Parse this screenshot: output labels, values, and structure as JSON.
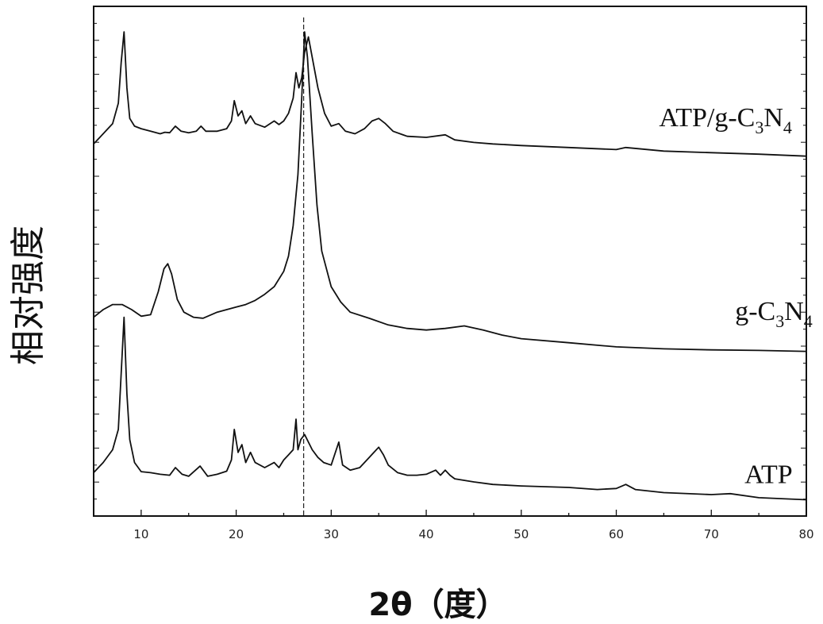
{
  "chart_data": {
    "type": "line",
    "title": "",
    "xlabel": "2θ（度）",
    "ylabel": "相对强度",
    "xlim": [
      5,
      80
    ],
    "ylim": [
      0,
      100
    ],
    "xticks": [
      10,
      20,
      30,
      40,
      50,
      60,
      70,
      80
    ],
    "yticks_labeled": false,
    "grid": false,
    "legend": "none",
    "marker_line": {
      "x": 27.1,
      "style": "dashed"
    },
    "series": [
      {
        "name": "ATP/g-C3N4",
        "label_parts": [
          {
            "text": "ATP/g-C",
            "sub": false
          },
          {
            "text": "3",
            "sub": true
          },
          {
            "text": "N",
            "sub": false
          },
          {
            "text": "4",
            "sub": true
          }
        ],
        "label_position": [
          64.5,
          76.5
        ],
        "color": "#111111",
        "x": [
          5,
          6,
          7,
          7.6,
          7.9,
          8.2,
          8.5,
          8.8,
          9.3,
          10,
          11,
          12,
          12.5,
          13,
          13.6,
          14.2,
          15,
          15.8,
          16.3,
          16.8,
          18,
          19,
          19.5,
          19.8,
          20.2,
          20.6,
          21,
          21.5,
          22,
          23,
          24,
          24.5,
          25,
          25.5,
          26,
          26.3,
          26.6,
          26.9,
          27.2,
          27.6,
          28,
          28.6,
          29.3,
          30,
          30.8,
          31.5,
          32.5,
          33.5,
          34.3,
          35,
          35.7,
          36.5,
          38,
          40,
          42,
          43,
          45,
          47,
          50,
          55,
          60,
          61,
          65,
          70,
          75,
          80
        ],
        "y": [
          73,
          75,
          77,
          81,
          89,
          95,
          84,
          78,
          76.5,
          76,
          75.5,
          75,
          75.3,
          75.2,
          76.5,
          75.5,
          75.2,
          75.5,
          76.5,
          75.5,
          75.5,
          76,
          77.5,
          81.5,
          78.5,
          79.5,
          77,
          78.5,
          77,
          76.3,
          77.5,
          76.8,
          77.5,
          79,
          82,
          87,
          84,
          86,
          91,
          94,
          90,
          84,
          79,
          76.5,
          77,
          75.5,
          75,
          76,
          77.5,
          78,
          77,
          75.5,
          74.5,
          74.3,
          74.8,
          73.8,
          73.3,
          73,
          72.7,
          72.3,
          71.9,
          72.3,
          71.6,
          71.3,
          71,
          70.6
        ]
      },
      {
        "name": "g-C3N4",
        "label_parts": [
          {
            "text": "g-C",
            "sub": false
          },
          {
            "text": "3",
            "sub": true
          },
          {
            "text": "N",
            "sub": false
          },
          {
            "text": "4",
            "sub": true
          }
        ],
        "label_position": [
          72.5,
          38.5
        ],
        "color": "#111111",
        "x": [
          5,
          6,
          7,
          8,
          9,
          10,
          11,
          11.8,
          12.4,
          12.8,
          13.2,
          13.8,
          14.5,
          15.5,
          16.5,
          18,
          20,
          21,
          22,
          23,
          24,
          25,
          25.5,
          26,
          26.5,
          26.9,
          27.2,
          27.5,
          28,
          28.5,
          29,
          30,
          31,
          32,
          34,
          36,
          38,
          40,
          42,
          44,
          46,
          48,
          50,
          55,
          60,
          65,
          70,
          75,
          80
        ],
        "y": [
          39,
          40.5,
          41.5,
          41.5,
          40.5,
          39.2,
          39.5,
          44,
          48.5,
          49.5,
          47.5,
          42.5,
          40,
          39,
          38.8,
          40,
          41,
          41.5,
          42.3,
          43.5,
          45,
          48,
          51,
          57,
          67,
          82,
          95,
          90,
          75,
          61,
          52,
          45,
          42,
          40,
          38.8,
          37.5,
          36.8,
          36.5,
          36.8,
          37.3,
          36.5,
          35.5,
          34.8,
          34,
          33.2,
          32.8,
          32.6,
          32.5,
          32.3
        ]
      },
      {
        "name": "ATP",
        "label_parts": [
          {
            "text": "ATP",
            "sub": false
          }
        ],
        "label_position": [
          73.5,
          6.5
        ],
        "color": "#111111",
        "x": [
          5,
          6,
          7,
          7.6,
          7.9,
          8.2,
          8.5,
          8.8,
          9.3,
          10,
          11,
          12,
          13,
          13.6,
          14.3,
          15,
          16.2,
          17,
          18,
          19,
          19.5,
          19.8,
          20.2,
          20.6,
          21,
          21.5,
          22,
          23,
          24,
          24.5,
          25,
          25.5,
          26,
          26.3,
          26.5,
          26.8,
          27.2,
          27.6,
          28,
          28.6,
          29.2,
          30,
          30.8,
          31.2,
          32,
          33,
          34,
          34.5,
          35,
          35.5,
          36,
          37,
          38,
          39,
          40,
          41,
          41.5,
          42,
          42.5,
          43,
          45,
          47,
          50,
          55,
          58,
          60,
          61,
          62,
          65,
          70,
          72,
          75,
          80
        ],
        "y": [
          8.5,
          10.5,
          13,
          17,
          28,
          39,
          24,
          15,
          10.5,
          8.7,
          8.5,
          8.2,
          8,
          9.5,
          8.2,
          7.8,
          9.8,
          7.8,
          8.2,
          8.8,
          11,
          17,
          12.5,
          14,
          10.5,
          12.5,
          10.5,
          9.5,
          10.5,
          9.5,
          11,
          12,
          13,
          19,
          13,
          15,
          16,
          14.5,
          13,
          11.5,
          10.5,
          10,
          14.5,
          10,
          9,
          9.5,
          11.5,
          12.5,
          13.5,
          12,
          10,
          8.5,
          8,
          8,
          8.2,
          9,
          8,
          9,
          8,
          7.3,
          6.7,
          6.2,
          5.9,
          5.6,
          5.2,
          5.4,
          6.2,
          5.2,
          4.6,
          4.2,
          4.4,
          3.6,
          3.2
        ]
      }
    ]
  }
}
